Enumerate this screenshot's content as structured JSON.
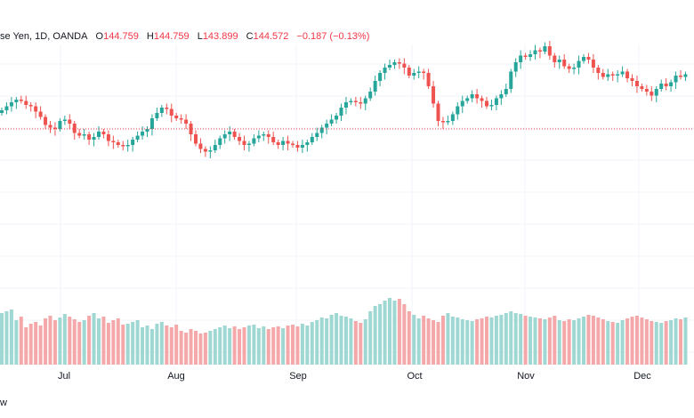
{
  "legend": {
    "symbol_fragment": "se Yen, 1D, OANDA",
    "o_label": "O",
    "o_value": "144.759",
    "h_label": "H",
    "h_value": "144.759",
    "l_label": "L",
    "l_value": "143.899",
    "c_label": "C",
    "c_value": "144.572",
    "change": "−0.187 (−0.13%)"
  },
  "footer_text": "w",
  "colors": {
    "up": "#26a69a",
    "down": "#ef5350",
    "up_volume": "#9fd8d2",
    "down_volume": "#f5a8aa",
    "grid": "#f0f3fa",
    "price_line": "#f23645",
    "text": "#131722"
  },
  "chart_data": {
    "type": "candlestick",
    "interval": "1D",
    "source": "OANDA",
    "x_labels": [
      "Jul",
      "Aug",
      "Sep",
      "Oct",
      "Nov",
      "Dec"
    ],
    "current_price": 144.572,
    "closes_y": [
      144,
      147,
      150,
      152,
      151,
      148,
      147,
      143,
      139,
      133,
      131,
      130,
      136,
      137,
      134,
      127,
      125,
      126,
      122,
      124,
      128,
      126,
      121,
      120,
      118,
      117,
      118,
      122,
      125,
      128,
      130,
      138,
      142,
      146,
      145,
      140,
      138,
      137,
      134,
      126,
      119,
      115,
      113,
      114,
      118,
      123,
      126,
      128,
      124,
      121,
      118,
      119,
      123,
      125,
      126,
      124,
      120,
      118,
      121,
      119,
      118,
      116,
      118,
      120,
      124,
      127,
      131,
      134,
      137,
      140,
      146,
      150,
      151,
      150,
      149,
      153,
      158,
      166,
      172,
      176,
      178,
      180,
      179,
      176,
      170,
      172,
      173,
      172,
      162,
      149,
      136,
      135,
      136,
      141,
      147,
      151,
      153,
      156,
      153,
      151,
      147,
      148,
      153,
      156,
      160,
      173,
      180,
      185,
      184,
      186,
      189,
      188,
      192,
      185,
      180,
      182,
      177,
      175,
      176,
      181,
      184,
      182,
      176,
      172,
      169,
      171,
      170,
      171,
      173,
      168,
      166,
      162,
      160,
      158,
      155,
      160,
      164,
      162,
      165,
      170,
      169,
      171
    ],
    "volumes": [
      58,
      60,
      62,
      50,
      54,
      42,
      46,
      48,
      44,
      52,
      55,
      50,
      53,
      57,
      54,
      51,
      48,
      50,
      55,
      58,
      52,
      54,
      47,
      50,
      52,
      45,
      46,
      48,
      50,
      42,
      44,
      40,
      46,
      48,
      44,
      42,
      45,
      38,
      36,
      40,
      38,
      35,
      36,
      38,
      40,
      42,
      44,
      41,
      43,
      40,
      42,
      44,
      45,
      41,
      43,
      40,
      42,
      43,
      41,
      44,
      45,
      43,
      46,
      44,
      48,
      50,
      53,
      52,
      56,
      58,
      55,
      54,
      52,
      49,
      47,
      51,
      60,
      66,
      68,
      72,
      75,
      72,
      74,
      68,
      60,
      56,
      52,
      55,
      52,
      50,
      48,
      55,
      58,
      54,
      53,
      51,
      50,
      49,
      51,
      52,
      54,
      53,
      55,
      56,
      58,
      60,
      58,
      57,
      55,
      54,
      53,
      52,
      51,
      53,
      55,
      50,
      49,
      51,
      50,
      52,
      54,
      56,
      55,
      53,
      51,
      49,
      48,
      47,
      50,
      52,
      54,
      55,
      53,
      51,
      49,
      48,
      47,
      49,
      50,
      52,
      51,
      53
    ]
  }
}
